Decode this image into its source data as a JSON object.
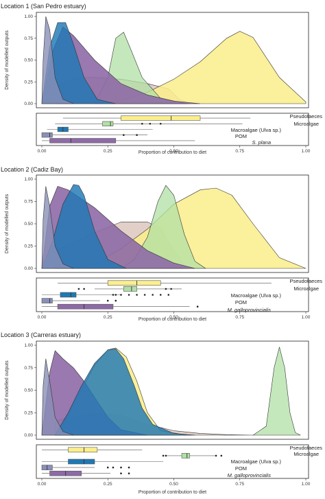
{
  "colors": {
    "Pseudofaeces": "#fbee8d",
    "Microalgae": "#b0e0a4",
    "Macroalgae": "#1f78b4",
    "POM": "#8a90b8",
    "Mussel": "#8e6aa6"
  },
  "chart_data": [
    {
      "type": "area",
      "title": "Location 1 (San Pedro estuary)",
      "ylabel": "Density of modelled outputs",
      "xlabel": "Proportion of contribution to diet",
      "xlim": [
        0,
        1
      ],
      "ylim": [
        0,
        1
      ],
      "y_ticks": [
        "0.00",
        "0.25",
        "0.50",
        "0.75",
        "1.00"
      ],
      "x_ticks": [
        "0.00",
        "0.25",
        "0.50",
        "0.75",
        "1.00"
      ],
      "grid": false,
      "series": [
        {
          "name": "Pseudofaeces",
          "color": "#fbee8d",
          "x": [
            0.2,
            0.3,
            0.4,
            0.5,
            0.6,
            0.7,
            0.75,
            0.8,
            0.9,
            1.0
          ],
          "y": [
            0,
            0.03,
            0.13,
            0.28,
            0.48,
            0.75,
            0.83,
            0.76,
            0.3,
            0.02
          ]
        },
        {
          "name": "Microalgae",
          "color": "#b0e0a4",
          "x": [
            0.2,
            0.25,
            0.28,
            0.31,
            0.34,
            0.38,
            0.45,
            0.55
          ],
          "y": [
            0,
            0.3,
            0.75,
            0.82,
            0.6,
            0.3,
            0.06,
            0
          ]
        },
        {
          "name": "Macroalgae (Ulva sp.)",
          "color": "#1f78b4",
          "x": [
            0,
            0.03,
            0.06,
            0.09,
            0.12,
            0.16,
            0.21,
            0.28
          ],
          "y": [
            0,
            0.65,
            0.93,
            0.93,
            0.68,
            0.3,
            0.05,
            0
          ]
        },
        {
          "name": "POM",
          "color": "#8a90b8",
          "x": [
            0,
            0.005,
            0.015,
            0.03,
            0.05,
            0.08,
            0.12
          ],
          "y": [
            0,
            0.5,
            1.0,
            0.85,
            0.3,
            0.05,
            0
          ]
        },
        {
          "name": "S. plana",
          "color": "#8e6aa6",
          "x": [
            0,
            0.04,
            0.08,
            0.12,
            0.2,
            0.3,
            0.4,
            0.5,
            0.6
          ],
          "y": [
            0,
            0.6,
            0.88,
            0.78,
            0.5,
            0.23,
            0.1,
            0.03,
            0
          ]
        },
        {
          "name": "",
          "color": "#c9a79a",
          "x": [
            0.05,
            0.1,
            0.15,
            0.2,
            0.3,
            0.4,
            0.48,
            0.52,
            0.56
          ],
          "y": [
            0.18,
            0.26,
            0.3,
            0.3,
            0.28,
            0.23,
            0.17,
            0.05,
            0
          ]
        }
      ],
      "boxplot_xlabel": "Proportion of contribution to diet",
      "boxes": [
        {
          "name": "Pseudofaeces",
          "color": "#fbee8d",
          "whisker": [
            0.08,
            0.79
          ],
          "q1": 0.3,
          "median": 0.49,
          "q3": 0.6,
          "outliers": []
        },
        {
          "name": "Microalgae",
          "color": "#b0e0a4",
          "whisker": [
            0.05,
            0.76
          ],
          "q1": 0.23,
          "median": 0.26,
          "q3": 0.27,
          "outliers": [
            0.38,
            0.41,
            0.45
          ]
        },
        {
          "name": "Macroalgae (Ulva sp.)",
          "color": "#1f78b4",
          "whisker": [
            0.02,
            0.42
          ],
          "q1": 0.06,
          "median": 0.08,
          "q3": 0.1,
          "outliers": []
        },
        {
          "name": "POM",
          "color": "#8a90b8",
          "whisker": [
            0.0,
            0.4
          ],
          "q1": 0.0,
          "median": 0.03,
          "q3": 0.04,
          "outliers": [
            0.31,
            0.36
          ]
        },
        {
          "name": "S. plana",
          "color": "#8e6aa6",
          "whisker": [
            0.0,
            0.58
          ],
          "q1": 0.03,
          "median": 0.11,
          "q3": 0.28,
          "outliers": []
        }
      ]
    },
    {
      "type": "area",
      "title": "Location 2 (Cadiz Bay)",
      "ylabel": "Density of modelled outputs",
      "xlabel": "Proportion of contribution to diet",
      "xlim": [
        0,
        1
      ],
      "ylim": [
        0,
        1
      ],
      "y_ticks": [
        "0.00",
        "0.25",
        "0.50",
        "0.75",
        "1.00"
      ],
      "x_ticks": [
        "0.00",
        "0.25",
        "0.50",
        "0.75",
        "1.00"
      ],
      "grid": false,
      "series": [
        {
          "name": "Pseudofaeces",
          "color": "#fbee8d",
          "x": [
            0.1,
            0.2,
            0.3,
            0.4,
            0.5,
            0.6,
            0.66,
            0.72,
            0.8,
            0.9,
            1.0
          ],
          "y": [
            0,
            0.05,
            0.22,
            0.44,
            0.72,
            0.88,
            0.9,
            0.82,
            0.5,
            0.12,
            0
          ]
        },
        {
          "name": "Microalgae",
          "color": "#b0e0a4",
          "x": [
            0.3,
            0.35,
            0.4,
            0.44,
            0.47,
            0.5,
            0.54,
            0.58,
            0.62
          ],
          "y": [
            0,
            0.1,
            0.35,
            0.75,
            0.93,
            0.82,
            0.38,
            0.08,
            0
          ]
        },
        {
          "name": "Macroalgae (Ulva sp.)",
          "color": "#1f78b4",
          "x": [
            0,
            0.04,
            0.08,
            0.12,
            0.14,
            0.16,
            0.2,
            0.25,
            0.32
          ],
          "y": [
            0,
            0.3,
            0.72,
            0.94,
            0.93,
            0.82,
            0.42,
            0.1,
            0
          ]
        },
        {
          "name": "POM",
          "color": "#8a90b8",
          "x": [
            0,
            0.005,
            0.015,
            0.03,
            0.05,
            0.08,
            0.12
          ],
          "y": [
            0,
            0.55,
            0.92,
            0.7,
            0.25,
            0.05,
            0
          ]
        },
        {
          "name": "M. galloprovincialis",
          "color": "#8e6aa6",
          "x": [
            0,
            0.03,
            0.06,
            0.1,
            0.2,
            0.3,
            0.4,
            0.5,
            0.58
          ],
          "y": [
            0,
            0.7,
            0.92,
            0.88,
            0.68,
            0.42,
            0.2,
            0.06,
            0
          ]
        },
        {
          "name": "",
          "color": "#c9a79a",
          "x": [
            0.05,
            0.1,
            0.2,
            0.3,
            0.4,
            0.45,
            0.5,
            0.55
          ],
          "y": [
            0.2,
            0.26,
            0.4,
            0.52,
            0.52,
            0.45,
            0.2,
            0
          ]
        }
      ],
      "boxplot_xlabel": "Proportion of contribution to diet",
      "boxes": [
        {
          "name": "Pseudofaeces",
          "color": "#fbee8d",
          "whisker": [
            0.06,
            0.87
          ],
          "q1": 0.25,
          "median": 0.36,
          "q3": 0.45,
          "outliers": []
        },
        {
          "name": "Microalgae",
          "color": "#b0e0a4",
          "whisker": [
            0.2,
            0.53
          ],
          "q1": 0.31,
          "median": 0.34,
          "q3": 0.36,
          "outliers": [
            0.14,
            0.16,
            0.47,
            0.49
          ]
        },
        {
          "name": "Macroalgae (Ulva sp.)",
          "color": "#1f78b4",
          "whisker": [
            0.0,
            0.3
          ],
          "q1": 0.07,
          "median": 0.11,
          "q3": 0.13,
          "outliers": [
            0.27,
            0.28,
            0.3,
            0.33,
            0.36,
            0.39,
            0.42,
            0.45,
            0.48
          ]
        },
        {
          "name": "POM",
          "color": "#8a90b8",
          "whisker": [
            0.0,
            0.22
          ],
          "q1": 0.0,
          "median": 0.03,
          "q3": 0.04,
          "outliers": [
            0.25,
            0.28
          ]
        },
        {
          "name": "M. galloprovincialis",
          "color": "#8e6aa6",
          "whisker": [
            0.0,
            0.56
          ],
          "q1": 0.06,
          "median": 0.16,
          "q3": 0.27,
          "outliers": [
            0.59
          ]
        }
      ]
    },
    {
      "type": "area",
      "title": "Location 3 (Carreras estuary)",
      "ylabel": "Density of modelled outputs",
      "xlabel": "Proportion of contribution to diet",
      "xlim": [
        0,
        1
      ],
      "ylim": [
        0,
        1
      ],
      "y_ticks": [
        "0.00",
        "0.25",
        "0.50",
        "0.75",
        "1.00"
      ],
      "x_ticks": [
        "0.00",
        "0.25",
        "0.50",
        "0.75",
        "1.00"
      ],
      "grid": false,
      "series": [
        {
          "name": "Pseudofaeces",
          "color": "#fbee8d",
          "x": [
            0.05,
            0.1,
            0.15,
            0.2,
            0.25,
            0.28,
            0.32,
            0.36,
            0.4,
            0.45,
            0.55
          ],
          "y": [
            0,
            0.2,
            0.5,
            0.78,
            0.95,
            0.97,
            0.87,
            0.6,
            0.25,
            0.05,
            0
          ]
        },
        {
          "name": "Microalgae",
          "color": "#b0e0a4",
          "x": [
            0.8,
            0.85,
            0.88,
            0.9,
            0.92,
            0.94,
            0.96,
            0.98
          ],
          "y": [
            0,
            0.1,
            0.75,
            0.98,
            0.75,
            0.25,
            0.03,
            0
          ]
        },
        {
          "name": "Macroalgae (Ulva sp.)",
          "color": "#1f78b4",
          "x": [
            0.05,
            0.1,
            0.15,
            0.2,
            0.25,
            0.28,
            0.31,
            0.35,
            0.38,
            0.42,
            0.5,
            0.58
          ],
          "y": [
            0,
            0.25,
            0.55,
            0.8,
            0.95,
            0.96,
            0.85,
            0.55,
            0.3,
            0.12,
            0.02,
            0
          ]
        },
        {
          "name": "POM",
          "color": "#8a90b8",
          "x": [
            0,
            0.005,
            0.015,
            0.03,
            0.05,
            0.08,
            0.12
          ],
          "y": [
            0,
            0.55,
            0.85,
            0.6,
            0.2,
            0.04,
            0
          ]
        },
        {
          "name": "M. galloprovincialis",
          "color": "#8e6aa6",
          "x": [
            0,
            0.03,
            0.05,
            0.08,
            0.12,
            0.16,
            0.2,
            0.25,
            0.3,
            0.4
          ],
          "y": [
            0,
            0.7,
            0.94,
            0.85,
            0.75,
            0.6,
            0.42,
            0.2,
            0.06,
            0
          ]
        },
        {
          "name": "",
          "color": "#c9a79a",
          "x": [
            0.05,
            0.1,
            0.2,
            0.3,
            0.4,
            0.5,
            0.6,
            0.7,
            0.8
          ],
          "y": [
            0.15,
            0.2,
            0.24,
            0.22,
            0.12,
            0.05,
            0.02,
            0.005,
            0
          ]
        }
      ],
      "boxplot_xlabel": "Proportion of contribution to diet",
      "boxes": [
        {
          "name": "Pseudofaeces",
          "color": "#fbee8d",
          "whisker": [
            0.0,
            0.38
          ],
          "q1": 0.1,
          "median": 0.16,
          "q3": 0.21,
          "outliers": []
        },
        {
          "name": "Microalgae",
          "color": "#b0e0a4",
          "whisker": [
            0.47,
            0.66
          ],
          "q1": 0.53,
          "median": 0.55,
          "q3": 0.56,
          "outliers": [
            0.46,
            0.47,
            0.66,
            0.68
          ]
        },
        {
          "name": "Macroalgae (Ulva sp.)",
          "color": "#1f78b4",
          "whisker": [
            0.0,
            0.46
          ],
          "q1": 0.1,
          "median": 0.16,
          "q3": 0.2,
          "outliers": []
        },
        {
          "name": "POM",
          "color": "#8a90b8",
          "whisker": [
            0.0,
            0.2
          ],
          "q1": 0.0,
          "median": 0.02,
          "q3": 0.04,
          "outliers": [
            0.25,
            0.27,
            0.3,
            0.33
          ]
        },
        {
          "name": "M. galloprovincialis",
          "color": "#8e6aa6",
          "whisker": [
            0.0,
            0.26
          ],
          "q1": 0.03,
          "median": 0.09,
          "q3": 0.15,
          "outliers": [
            0.3,
            0.33
          ]
        }
      ]
    }
  ]
}
